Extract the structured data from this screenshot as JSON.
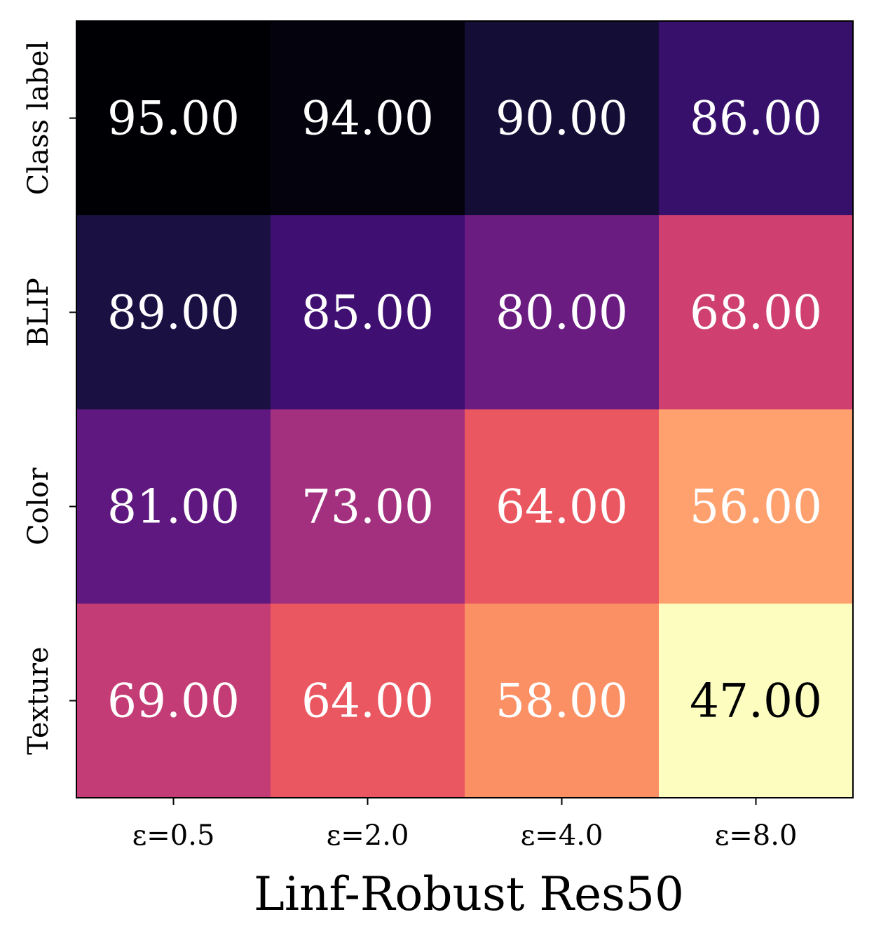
{
  "chart_data": {
    "type": "heatmap",
    "title": "",
    "xlabel": "Linf-Robust Res50",
    "ylabel": "",
    "x_categories": [
      "ε=0.5",
      "ε=2.0",
      "ε=4.0",
      "ε=8.0"
    ],
    "y_categories": [
      "Class label",
      "BLIP",
      "Color",
      "Texture"
    ],
    "values": [
      [
        95.0,
        94.0,
        90.0,
        86.0
      ],
      [
        89.0,
        85.0,
        80.0,
        68.0
      ],
      [
        81.0,
        73.0,
        64.0,
        56.0
      ],
      [
        69.0,
        64.0,
        58.0,
        47.0
      ]
    ],
    "value_format": "0.00",
    "colormap": "magma_r",
    "color_range": [
      47,
      95
    ],
    "colorbar": false,
    "grid": false,
    "cell_colors": [
      [
        "#000004",
        "#03020d",
        "#140e36",
        "#36106b"
      ],
      [
        "#1a1042",
        "#3f0f72",
        "#6a1c81",
        "#cf4070"
      ],
      [
        "#5f187f",
        "#a3307e",
        "#eb5760",
        "#fea16e"
      ],
      [
        "#c43c75",
        "#eb5760",
        "#fc9065",
        "#fcfdbf"
      ]
    ],
    "label_colors": [
      [
        "#ffffff",
        "#ffffff",
        "#ffffff",
        "#ffffff"
      ],
      [
        "#ffffff",
        "#ffffff",
        "#ffffff",
        "#ffffff"
      ],
      [
        "#ffffff",
        "#ffffff",
        "#ffffff",
        "#ffffff"
      ],
      [
        "#ffffff",
        "#ffffff",
        "#ffffff",
        "#000000"
      ]
    ]
  }
}
